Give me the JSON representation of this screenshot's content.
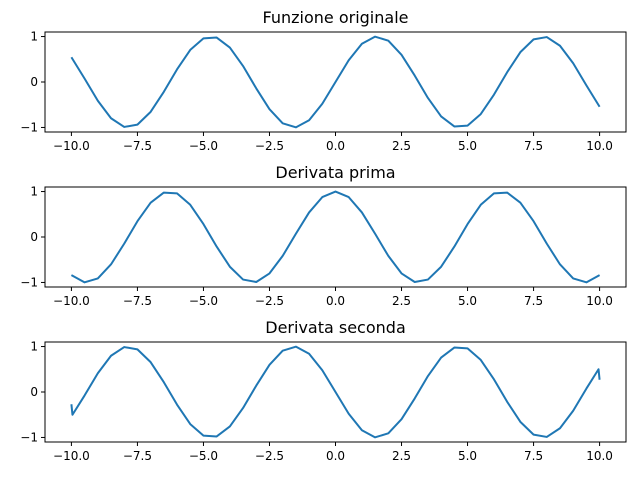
{
  "chart_data": [
    {
      "type": "line",
      "title": "Funzione originale",
      "xlabel": "",
      "ylabel": "",
      "xlim": [
        -11,
        11
      ],
      "ylim": [
        -1.1,
        1.1
      ],
      "xticks": [
        -10.0,
        -7.5,
        -5.0,
        -2.5,
        0.0,
        2.5,
        5.0,
        7.5,
        10.0
      ],
      "xtick_labels": [
        "−10.0",
        "−7.5",
        "−5.0",
        "−2.5",
        "0.0",
        "2.5",
        "5.0",
        "7.5",
        "10.0"
      ],
      "yticks": [
        1,
        0,
        -1
      ],
      "ytick_labels": [
        "1",
        "0",
        "−1"
      ],
      "grid": false,
      "legend": "none",
      "series": [
        {
          "color": "#1f77b4",
          "x": [
            -10.0,
            -9.5,
            -9.0,
            -8.5,
            -8.0,
            -7.5,
            -7.0,
            -6.5,
            -6.0,
            -5.5,
            -5.0,
            -4.5,
            -4.0,
            -3.5,
            -3.0,
            -2.5,
            -2.0,
            -1.5,
            -1.0,
            -0.5,
            0.0,
            0.5,
            1.0,
            1.5,
            2.0,
            2.5,
            3.0,
            3.5,
            4.0,
            4.5,
            5.0,
            5.5,
            6.0,
            6.5,
            7.0,
            7.5,
            8.0,
            8.5,
            9.0,
            9.5,
            10.0
          ],
          "y": [
            0.544,
            0.075,
            -0.412,
            -0.798,
            -0.989,
            -0.938,
            -0.657,
            -0.215,
            0.279,
            0.706,
            0.959,
            0.978,
            0.757,
            0.351,
            -0.141,
            -0.598,
            -0.909,
            -0.997,
            -0.841,
            -0.479,
            0.0,
            0.479,
            0.841,
            0.997,
            0.909,
            0.598,
            0.141,
            -0.351,
            -0.757,
            -0.978,
            -0.959,
            -0.706,
            -0.279,
            0.215,
            0.657,
            0.938,
            0.989,
            0.798,
            0.412,
            -0.075,
            -0.544
          ]
        }
      ]
    },
    {
      "type": "line",
      "title": "Derivata prima",
      "xlabel": "",
      "ylabel": "",
      "xlim": [
        -11,
        11
      ],
      "ylim": [
        -1.1,
        1.1
      ],
      "xticks": [
        -10.0,
        -7.5,
        -5.0,
        -2.5,
        0.0,
        2.5,
        5.0,
        7.5,
        10.0
      ],
      "xtick_labels": [
        "−10.0",
        "−7.5",
        "−5.0",
        "−2.5",
        "0.0",
        "2.5",
        "5.0",
        "7.5",
        "10.0"
      ],
      "yticks": [
        1,
        0,
        -1
      ],
      "ytick_labels": [
        "1",
        "0",
        "−1"
      ],
      "grid": false,
      "legend": "none",
      "series": [
        {
          "color": "#1f77b4",
          "x": [
            -10.0,
            -9.5,
            -9.0,
            -8.5,
            -8.0,
            -7.5,
            -7.0,
            -6.5,
            -6.0,
            -5.5,
            -5.0,
            -4.5,
            -4.0,
            -3.5,
            -3.0,
            -2.5,
            -2.0,
            -1.5,
            -1.0,
            -0.5,
            0.0,
            0.5,
            1.0,
            1.5,
            2.0,
            2.5,
            3.0,
            3.5,
            4.0,
            4.5,
            5.0,
            5.5,
            6.0,
            6.5,
            7.0,
            7.5,
            8.0,
            8.5,
            9.0,
            9.5,
            10.0
          ],
          "y": [
            -0.839,
            -0.997,
            -0.911,
            -0.602,
            -0.146,
            0.347,
            0.754,
            0.977,
            0.96,
            0.709,
            0.284,
            -0.211,
            -0.654,
            -0.936,
            -0.99,
            -0.801,
            -0.416,
            0.071,
            0.54,
            0.878,
            1.0,
            0.878,
            0.54,
            0.071,
            -0.416,
            -0.801,
            -0.99,
            -0.936,
            -0.654,
            -0.211,
            0.284,
            0.709,
            0.96,
            0.977,
            0.754,
            0.347,
            -0.146,
            -0.602,
            -0.911,
            -0.997,
            -0.839
          ]
        }
      ]
    },
    {
      "type": "line",
      "title": "Derivata seconda",
      "xlabel": "",
      "ylabel": "",
      "xlim": [
        -11,
        11
      ],
      "ylim": [
        -1.1,
        1.1
      ],
      "xticks": [
        -10.0,
        -7.5,
        -5.0,
        -2.5,
        0.0,
        2.5,
        5.0,
        7.5,
        10.0
      ],
      "xtick_labels": [
        "−10.0",
        "−7.5",
        "−5.0",
        "−2.5",
        "0.0",
        "2.5",
        "5.0",
        "7.5",
        "10.0"
      ],
      "yticks": [
        1,
        0,
        -1
      ],
      "ytick_labels": [
        "1",
        "0",
        "−1"
      ],
      "grid": false,
      "legend": "none",
      "series": [
        {
          "color": "#1f77b4",
          "x": [
            -10.0,
            -9.96,
            -9.5,
            -9.0,
            -8.5,
            -8.0,
            -7.5,
            -7.0,
            -6.5,
            -6.0,
            -5.5,
            -5.0,
            -4.5,
            -4.0,
            -3.5,
            -3.0,
            -2.5,
            -2.0,
            -1.5,
            -1.0,
            -0.5,
            0.0,
            0.5,
            1.0,
            1.5,
            2.0,
            2.5,
            3.0,
            3.5,
            4.0,
            4.5,
            5.0,
            5.5,
            6.0,
            6.5,
            7.0,
            7.5,
            8.0,
            8.5,
            9.0,
            9.5,
            9.96,
            10.0
          ],
          "y": [
            -0.27,
            -0.5,
            -0.075,
            0.412,
            0.798,
            0.989,
            0.938,
            0.657,
            0.215,
            -0.279,
            -0.706,
            -0.959,
            -0.978,
            -0.757,
            -0.351,
            0.141,
            0.598,
            0.909,
            0.997,
            0.841,
            0.479,
            0.0,
            -0.479,
            -0.841,
            -0.997,
            -0.909,
            -0.598,
            -0.141,
            0.351,
            0.757,
            0.978,
            0.959,
            0.706,
            0.279,
            -0.215,
            -0.657,
            -0.938,
            -0.989,
            -0.798,
            -0.412,
            0.075,
            0.5,
            0.27
          ]
        }
      ]
    }
  ]
}
